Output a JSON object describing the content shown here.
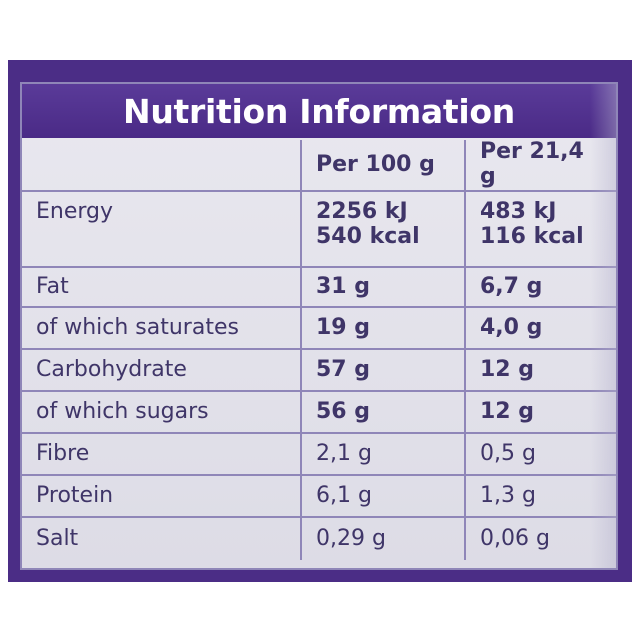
{
  "title": "Nutrition Information",
  "columns": [
    "",
    "Per 100 g",
    "Per 21,4 g"
  ],
  "rows": [
    {
      "label": "Energy",
      "per100": [
        "2256 kJ",
        "540 kcal"
      ],
      "perServing": [
        "483 kJ",
        "116 kcal"
      ]
    },
    {
      "label": "Fat",
      "per100": [
        "31 g"
      ],
      "perServing": [
        "6,7 g"
      ]
    },
    {
      "label": "of which saturates",
      "per100": [
        "19 g"
      ],
      "perServing": [
        "4,0 g"
      ]
    },
    {
      "label": "Carbohydrate",
      "per100": [
        "57 g"
      ],
      "perServing": [
        "12 g"
      ]
    },
    {
      "label": "of which sugars",
      "per100": [
        "56 g"
      ],
      "perServing": [
        "12 g"
      ]
    },
    {
      "label": "Fibre",
      "per100": [
        "2,1 g"
      ],
      "perServing": [
        "0,5 g"
      ]
    },
    {
      "label": "Protein",
      "per100": [
        "6,1 g"
      ],
      "perServing": [
        "1,3 g"
      ]
    },
    {
      "label": "Salt",
      "per100": [
        "0,29 g"
      ],
      "perServing": [
        "0,06 g"
      ]
    }
  ],
  "colors": {
    "packagingPurple": "#4b2d86",
    "titleBar": "#5a3b99",
    "tableBackground": "#e9e8ef",
    "text": "#3f3568",
    "gridLine": "#8f86b8"
  }
}
